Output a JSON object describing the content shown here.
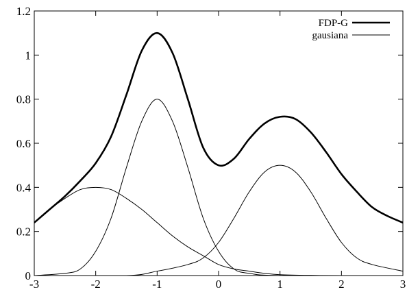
{
  "chart_data": {
    "type": "line",
    "title": "",
    "xlabel": "",
    "ylabel": "",
    "xlim": [
      -3,
      3
    ],
    "ylim": [
      0,
      1.2
    ],
    "x_ticks": [
      -3,
      -2,
      -1,
      0,
      1,
      2,
      3
    ],
    "x_tick_labels": [
      "-3",
      "-2",
      "-1",
      "0",
      "1",
      "2",
      "3"
    ],
    "y_ticks": [
      0,
      0.2,
      0.4,
      0.6,
      0.8,
      1,
      1.2
    ],
    "y_tick_labels": [
      "0",
      "0.2",
      "0.4",
      "0.6",
      "0.8",
      "1",
      "1.2"
    ],
    "grid": false,
    "legend_position": "top-right",
    "legend": [
      {
        "label": "FDP-G",
        "series": "FDP-G"
      },
      {
        "label": "gausiana",
        "series": "gausiana"
      }
    ],
    "series": [
      {
        "name": "FDP-G",
        "style": "thick",
        "points": [
          [
            -3.0,
            0.24
          ],
          [
            -2.75,
            0.3
          ],
          [
            -2.5,
            0.36
          ],
          [
            -2.25,
            0.43
          ],
          [
            -2.0,
            0.51
          ],
          [
            -1.75,
            0.63
          ],
          [
            -1.5,
            0.82
          ],
          [
            -1.25,
            1.02
          ],
          [
            -1.0,
            1.1
          ],
          [
            -0.75,
            1.01
          ],
          [
            -0.5,
            0.8
          ],
          [
            -0.25,
            0.58
          ],
          [
            0.0,
            0.5
          ],
          [
            0.25,
            0.53
          ],
          [
            0.5,
            0.62
          ],
          [
            0.75,
            0.69
          ],
          [
            1.0,
            0.72
          ],
          [
            1.25,
            0.71
          ],
          [
            1.5,
            0.65
          ],
          [
            1.75,
            0.56
          ],
          [
            2.0,
            0.46
          ],
          [
            2.25,
            0.38
          ],
          [
            2.5,
            0.31
          ],
          [
            2.75,
            0.27
          ],
          [
            3.0,
            0.24
          ]
        ]
      },
      {
        "name": "gausiana",
        "style": "thin",
        "components": [
          {
            "points": [
              [
                -3.0,
                0.24
              ],
              [
                -2.75,
                0.3
              ],
              [
                -2.5,
                0.35
              ],
              [
                -2.25,
                0.39
              ],
              [
                -2.0,
                0.4
              ],
              [
                -1.75,
                0.39
              ],
              [
                -1.5,
                0.35
              ],
              [
                -1.25,
                0.3
              ],
              [
                -1.0,
                0.24
              ],
              [
                -0.75,
                0.18
              ],
              [
                -0.5,
                0.13
              ],
              [
                -0.25,
                0.09
              ],
              [
                0.0,
                0.05
              ],
              [
                0.25,
                0.03
              ],
              [
                0.5,
                0.02
              ],
              [
                0.75,
                0.01
              ],
              [
                1.0,
                0.004
              ],
              [
                1.5,
                0.001
              ],
              [
                2.0,
                0.0
              ],
              [
                3.0,
                0.0
              ]
            ]
          },
          {
            "points": [
              [
                -3.0,
                0.0
              ],
              [
                -2.5,
                0.01
              ],
              [
                -2.25,
                0.03
              ],
              [
                -2.0,
                0.11
              ],
              [
                -1.75,
                0.26
              ],
              [
                -1.5,
                0.49
              ],
              [
                -1.25,
                0.7
              ],
              [
                -1.0,
                0.8
              ],
              [
                -0.75,
                0.7
              ],
              [
                -0.5,
                0.49
              ],
              [
                -0.25,
                0.26
              ],
              [
                0.0,
                0.11
              ],
              [
                0.25,
                0.03
              ],
              [
                0.5,
                0.01
              ],
              [
                1.0,
                0.0
              ],
              [
                3.0,
                0.0
              ]
            ]
          },
          {
            "points": [
              [
                -3.0,
                0.0
              ],
              [
                -1.5,
                0.0
              ],
              [
                -1.0,
                0.02
              ],
              [
                -0.5,
                0.05
              ],
              [
                -0.25,
                0.08
              ],
              [
                0.0,
                0.15
              ],
              [
                0.25,
                0.26
              ],
              [
                0.5,
                0.38
              ],
              [
                0.75,
                0.47
              ],
              [
                1.0,
                0.5
              ],
              [
                1.25,
                0.47
              ],
              [
                1.5,
                0.38
              ],
              [
                1.75,
                0.26
              ],
              [
                2.0,
                0.15
              ],
              [
                2.25,
                0.08
              ],
              [
                2.5,
                0.05
              ],
              [
                3.0,
                0.02
              ]
            ]
          }
        ]
      }
    ]
  }
}
